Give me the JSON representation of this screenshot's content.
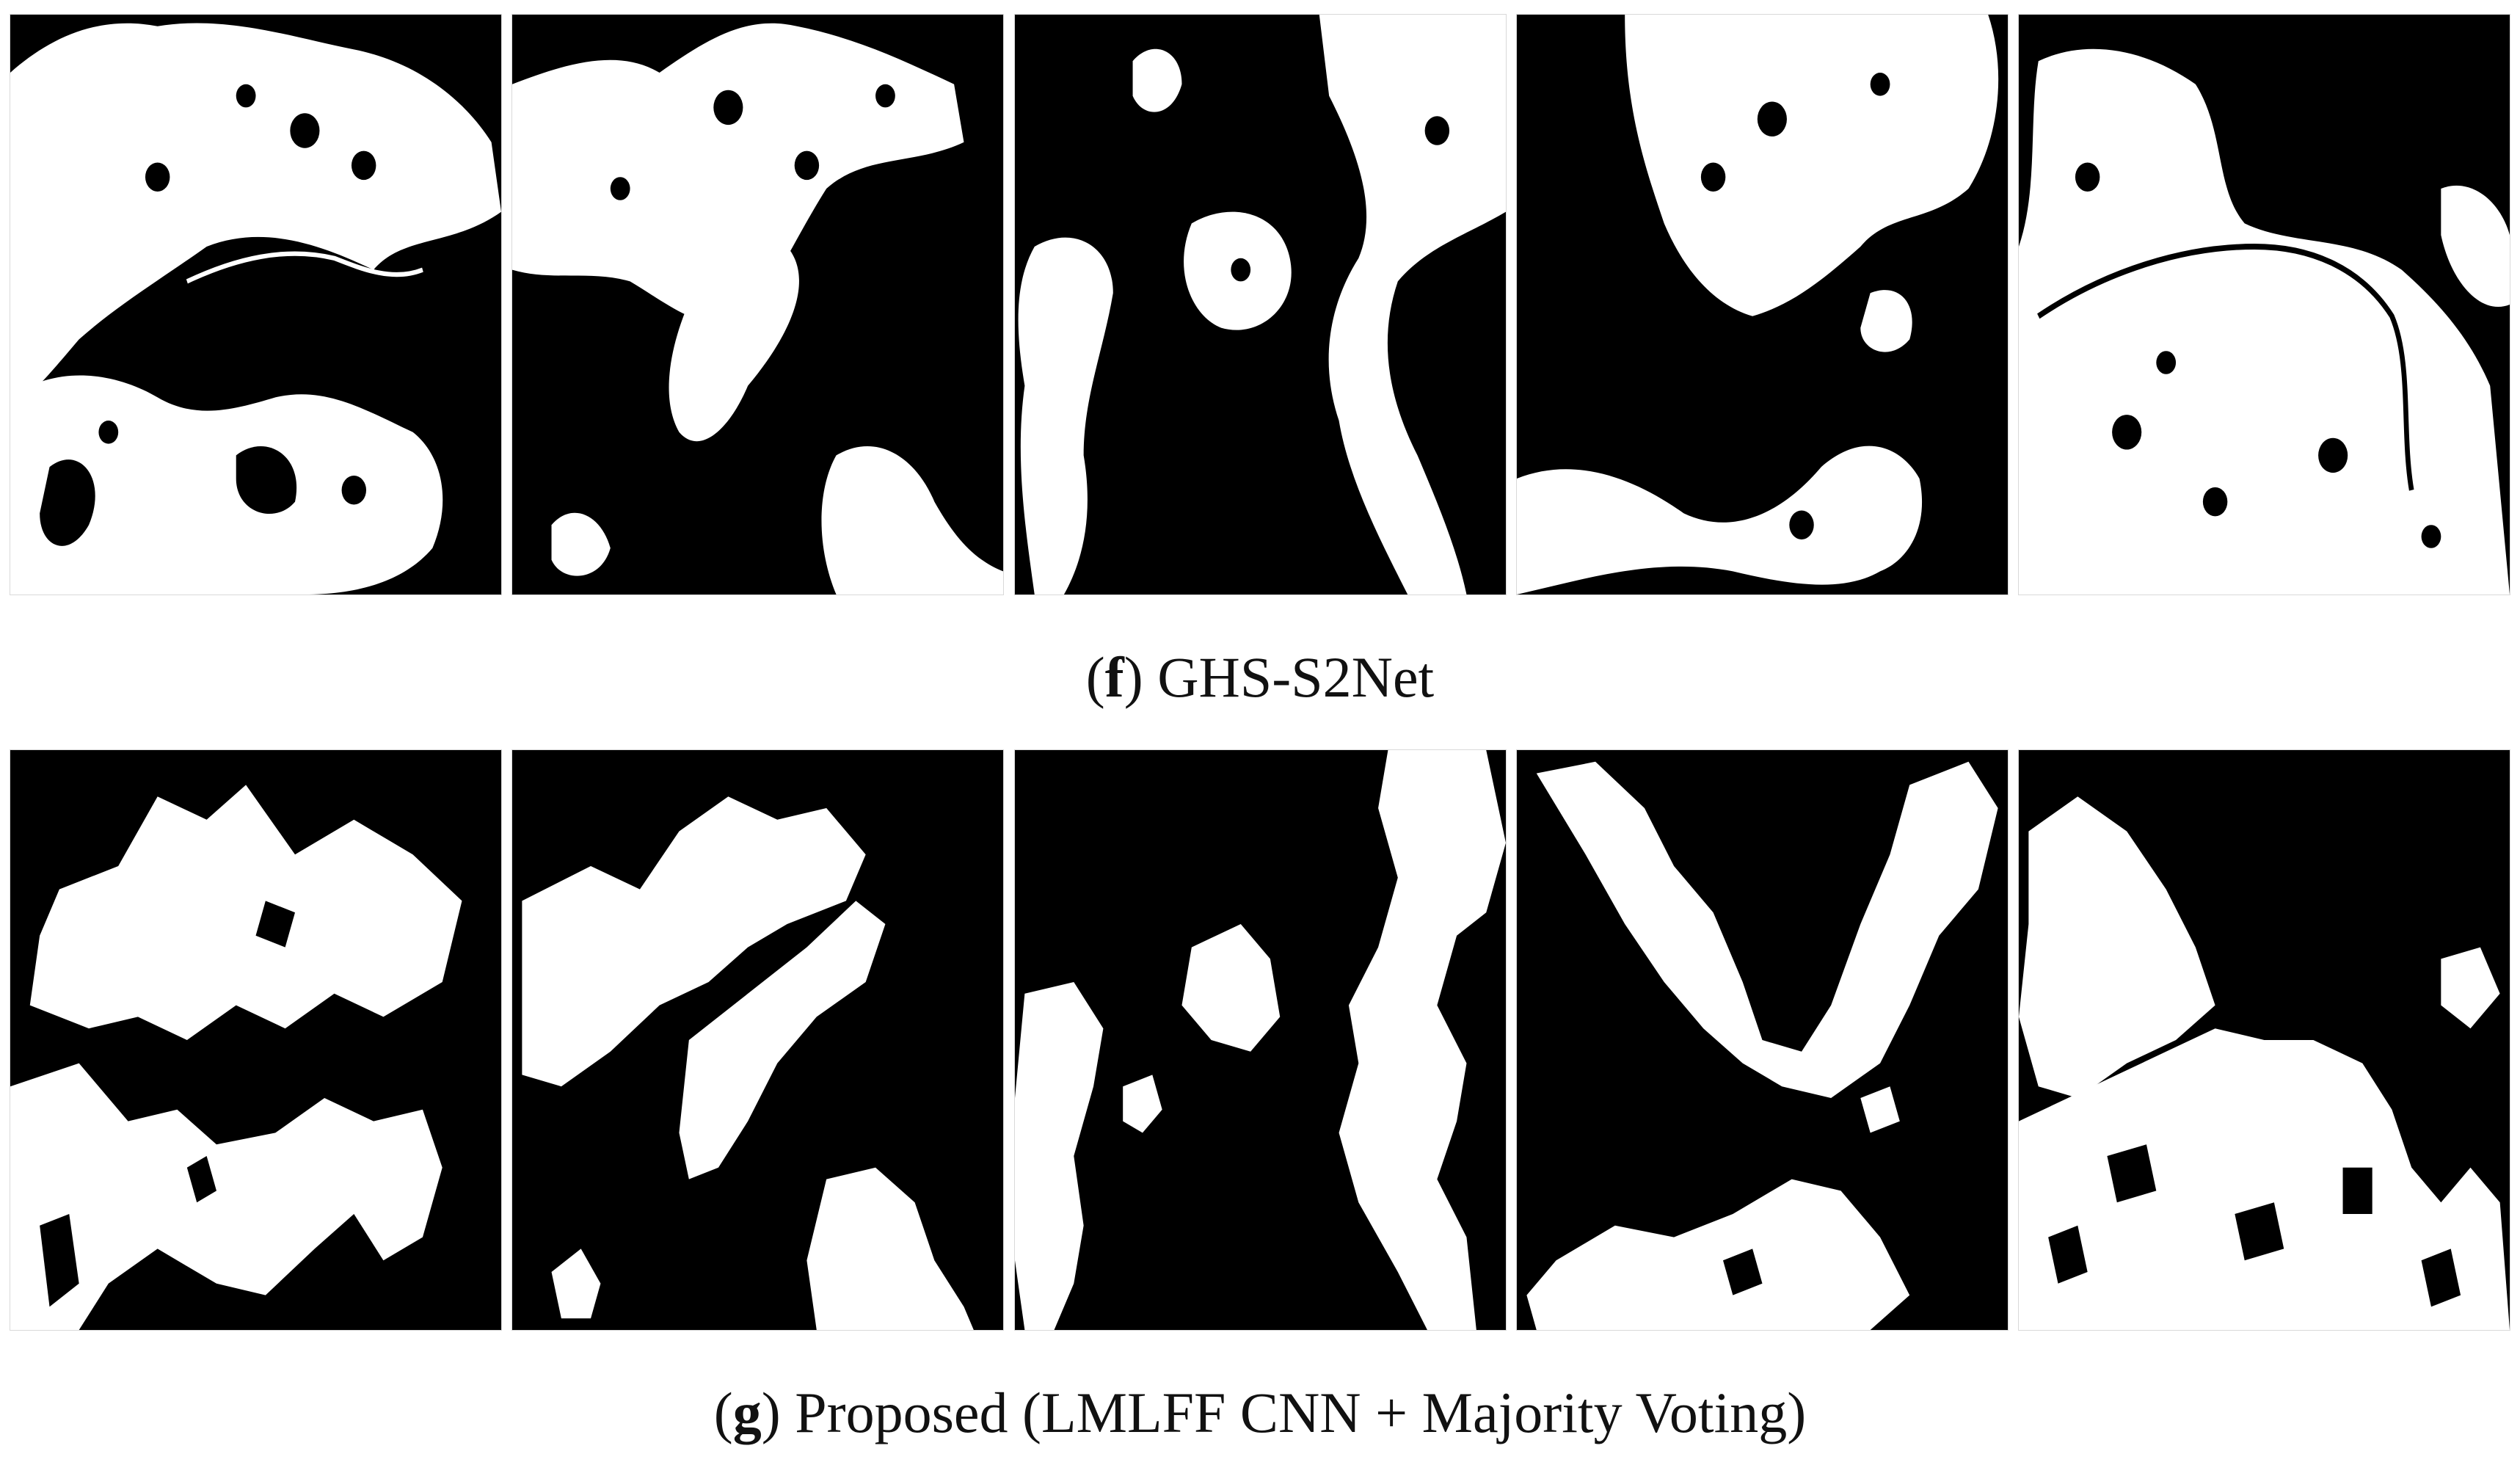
{
  "figure": {
    "rows": [
      {
        "id": "f",
        "caption_open": "(",
        "caption_letter": "f",
        "caption_close": ")",
        "caption_text": " GHS-S2Net",
        "panel_count": 5
      },
      {
        "id": "g",
        "caption_open": "(",
        "caption_letter": "g",
        "caption_close": ")",
        "caption_text": " Proposed (LMLFF CNN + Majority Voting)",
        "panel_count": 5
      }
    ],
    "colors": {
      "background": "#000000",
      "built_up": "#ffffff",
      "caption_text": "#111111"
    }
  }
}
